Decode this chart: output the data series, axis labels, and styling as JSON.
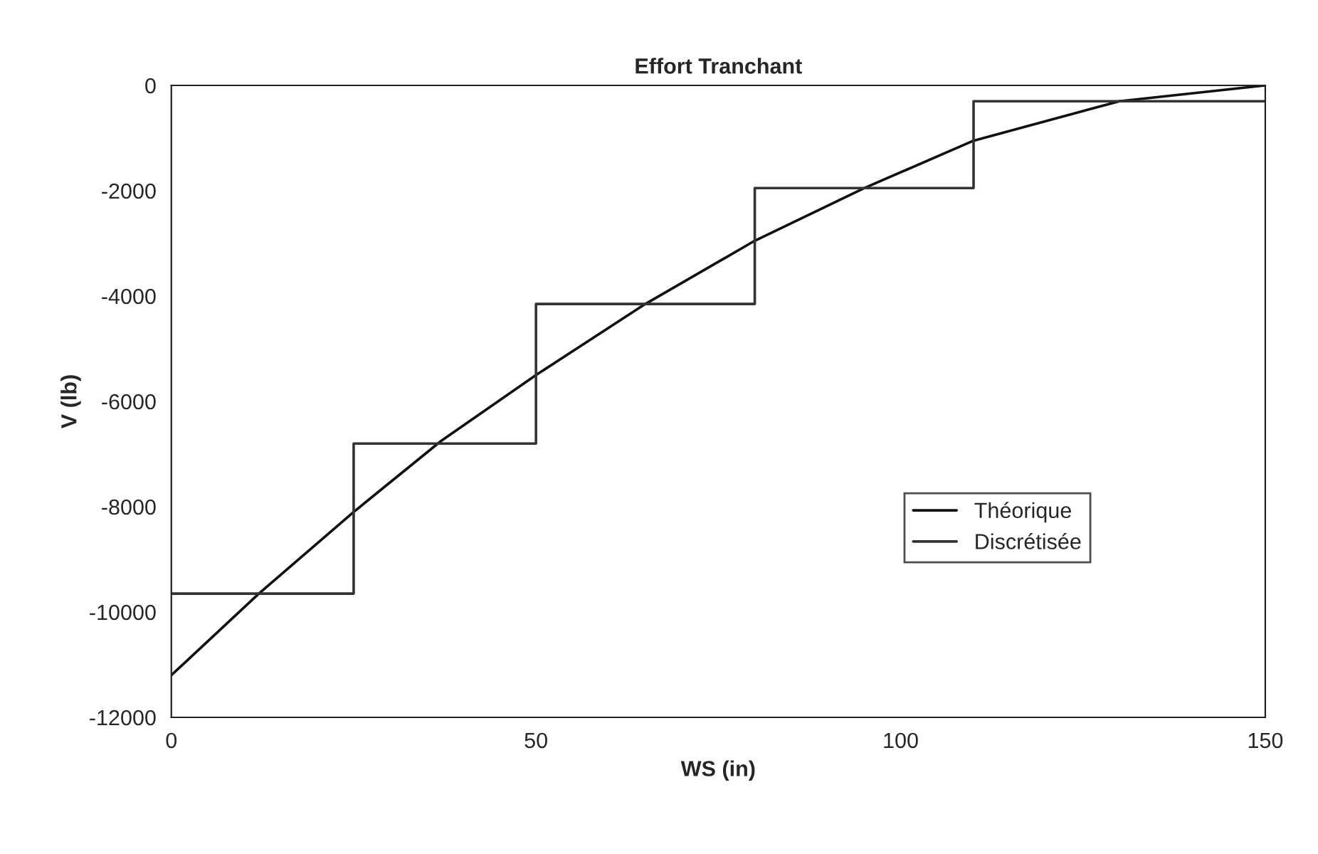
{
  "chart_data": {
    "type": "line",
    "title": "Effort Tranchant",
    "xlabel": "WS (in)",
    "ylabel": "V (lb)",
    "xlim": [
      0,
      150
    ],
    "xticks": [
      0,
      50,
      100,
      150
    ],
    "ylim": [
      -12000,
      0
    ],
    "yticks": [
      -12000,
      -10000,
      -8000,
      -6000,
      -4000,
      -2000,
      0
    ],
    "grid": false,
    "legend": "right",
    "marker": "none",
    "series": [
      {
        "name": "Théorique",
        "color": "#111111",
        "line_style": "solid",
        "x": [
          0,
          12,
          25,
          37,
          50,
          65,
          80,
          95,
          110,
          130,
          150
        ],
        "values": [
          -11200,
          -9650,
          -8100,
          -6750,
          -5500,
          -4150,
          -2950,
          -1950,
          -1050,
          -300,
          0
        ]
      },
      {
        "name": "Discrétisée",
        "type": "step",
        "color": "#333333",
        "line_style": "solid",
        "x": [
          0,
          25,
          50,
          80,
          110,
          150
        ],
        "values": [
          -9650,
          -6800,
          -4150,
          -1950,
          -300,
          -300
        ]
      }
    ]
  }
}
